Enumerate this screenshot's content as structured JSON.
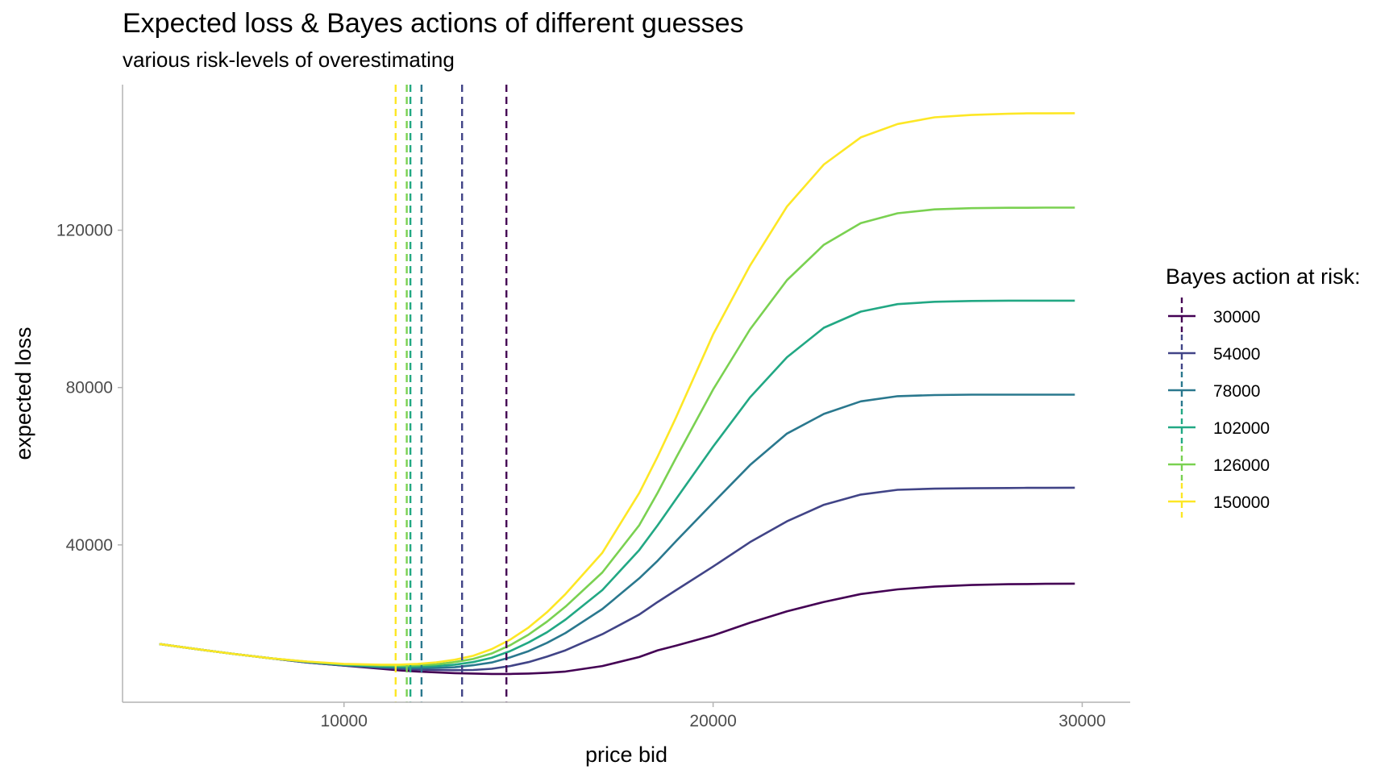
{
  "chart_data": {
    "type": "line",
    "title": "Expected loss & Bayes actions of different guesses",
    "subtitle": "various risk-levels of overestimating",
    "xlabel": "price bid",
    "ylabel": "expected loss",
    "xlim": [
      4000,
      31300
    ],
    "ylim": [
      0,
      157000
    ],
    "xticks": [
      10000,
      20000,
      30000
    ],
    "yticks": [
      40000,
      80000,
      120000
    ],
    "grid": false,
    "legend": {
      "title": "Bayes action at risk:",
      "position": "right"
    },
    "x": [
      5000,
      6000,
      7000,
      8000,
      9000,
      10000,
      11000,
      11500,
      12000,
      12500,
      13000,
      13500,
      14000,
      14500,
      15000,
      15500,
      16000,
      17000,
      18000,
      18500,
      19000,
      20000,
      21000,
      22000,
      23000,
      24000,
      25000,
      26000,
      27000,
      28000,
      28500,
      29000,
      29800
    ],
    "series": [
      {
        "name": "30000",
        "color": "#440154",
        "bayes_action": 14400,
        "values": [
          14800,
          13500,
          12300,
          11200,
          10100,
          9300,
          8500,
          8100,
          7800,
          7600,
          7400,
          7300,
          7200,
          7200,
          7300,
          7500,
          7800,
          9200,
          11500,
          13200,
          14400,
          17000,
          20200,
          23100,
          25500,
          27500,
          28700,
          29400,
          29800,
          30000,
          30050,
          30100,
          30150
        ]
      },
      {
        "name": "54000",
        "color": "#414487",
        "bayes_action": 13200,
        "values": [
          14800,
          13500,
          12300,
          11200,
          10100,
          9350,
          8750,
          8500,
          8300,
          8200,
          8150,
          8200,
          8500,
          9200,
          10200,
          11600,
          13200,
          17300,
          22300,
          25500,
          28500,
          34500,
          40700,
          46000,
          50200,
          52800,
          54000,
          54300,
          54400,
          54450,
          54500,
          54500,
          54550
        ]
      },
      {
        "name": "78000",
        "color": "#2A788E",
        "bayes_action": 12100,
        "values": [
          14800,
          13500,
          12300,
          11200,
          10200,
          9450,
          8950,
          8800,
          8700,
          8750,
          8900,
          9400,
          10100,
          11400,
          13000,
          15100,
          17600,
          23700,
          31500,
          36000,
          41000,
          50700,
          60300,
          68300,
          73300,
          76500,
          77800,
          78100,
          78200,
          78200,
          78200,
          78200,
          78200
        ]
      },
      {
        "name": "102000",
        "color": "#22A884",
        "bayes_action": 11800,
        "values": [
          14800,
          13500,
          12300,
          11200,
          10250,
          9550,
          9150,
          9050,
          9050,
          9200,
          9550,
          10200,
          11300,
          13000,
          15200,
          17800,
          21000,
          28500,
          38700,
          45000,
          51700,
          65000,
          77500,
          87700,
          95200,
          99300,
          101200,
          101800,
          102000,
          102100,
          102100,
          102100,
          102100
        ]
      },
      {
        "name": "126000",
        "color": "#7AD151",
        "bayes_action": 11700,
        "values": [
          14800,
          13500,
          12300,
          11200,
          10300,
          9650,
          9350,
          9300,
          9400,
          9650,
          10200,
          11000,
          12400,
          14500,
          17200,
          20500,
          24300,
          33000,
          45000,
          53300,
          62200,
          79500,
          94800,
          107300,
          116300,
          121800,
          124300,
          125300,
          125600,
          125700,
          125700,
          125750,
          125750
        ]
      },
      {
        "name": "150000",
        "color": "#FDE725",
        "bayes_action": 11400,
        "values": [
          14800,
          13500,
          12300,
          11200,
          10350,
          9750,
          9550,
          9550,
          9750,
          10150,
          10800,
          11800,
          13500,
          15900,
          19000,
          22900,
          27500,
          38000,
          53200,
          62500,
          72500,
          93500,
          111000,
          126000,
          136700,
          143600,
          147000,
          148700,
          149300,
          149600,
          149700,
          149700,
          149750
        ]
      }
    ]
  }
}
